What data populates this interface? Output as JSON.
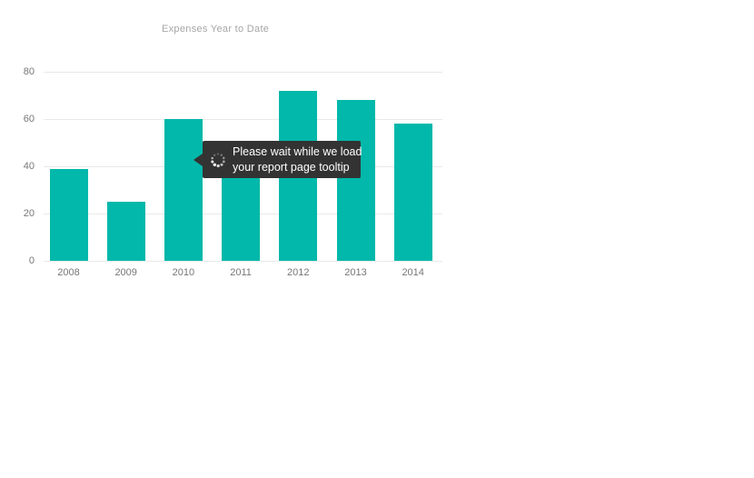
{
  "page": {
    "background": "#ffffff"
  },
  "chart_data": {
    "type": "bar",
    "title": "Expenses Year to Date",
    "categories": [
      "2008",
      "2009",
      "2010",
      "2011",
      "2012",
      "2013",
      "2014"
    ],
    "values": [
      39,
      25,
      60,
      44,
      72,
      68,
      58
    ],
    "xlabel": "",
    "ylabel": "",
    "ylim": [
      0,
      80
    ],
    "yticks": [
      0,
      20,
      40,
      60,
      80
    ],
    "grid": true,
    "legend": "none",
    "bar_color": "#01b8aa",
    "gridline_color": "#e9e9e9",
    "axis_label_color": "#777777",
    "title_color": "#a6a6a6"
  },
  "tooltip": {
    "lines": [
      "Please wait while we load",
      "your report page tooltip"
    ],
    "icon": "loading-spinner",
    "background": "#333333",
    "text_color": "#ffffff"
  }
}
